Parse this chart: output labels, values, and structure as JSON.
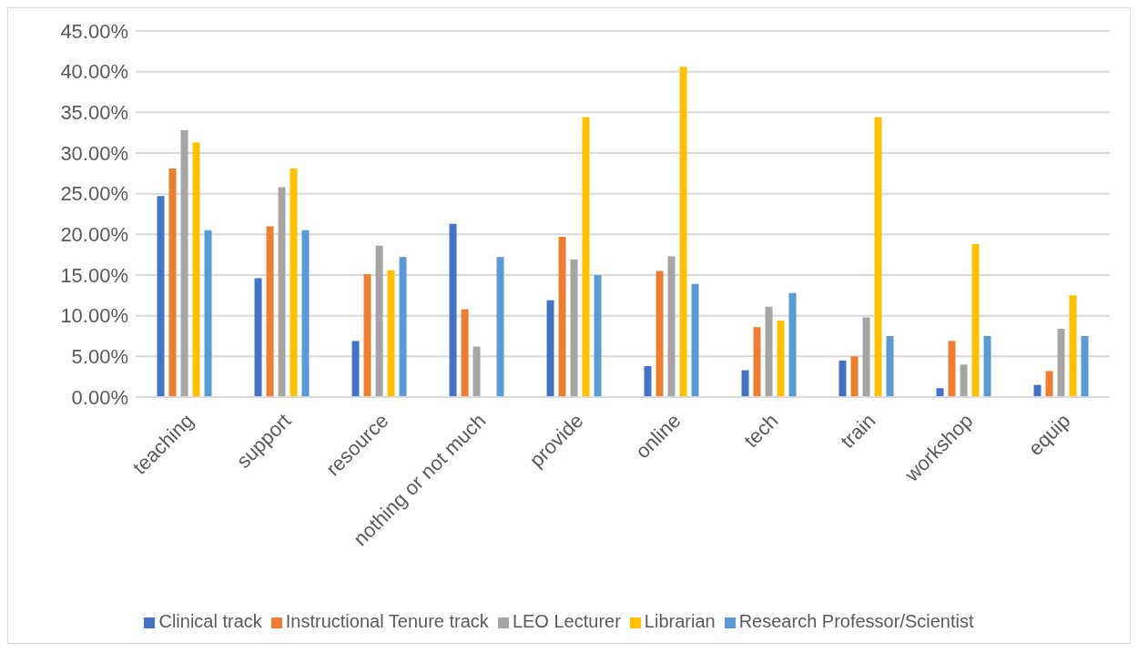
{
  "chart_data": {
    "type": "bar",
    "categories": [
      "teaching",
      "support",
      "resource",
      "nothing or not much",
      "provide",
      "online",
      "tech",
      "train",
      "workshop",
      "equip"
    ],
    "series": [
      {
        "name": "Clinical track",
        "color": "#4472c4",
        "values": [
          24.7,
          14.6,
          6.9,
          21.3,
          11.9,
          3.8,
          3.3,
          4.5,
          1.1,
          1.5
        ]
      },
      {
        "name": "Instructional Tenure track",
        "color": "#ed7d31",
        "values": [
          28.1,
          21.0,
          15.1,
          10.8,
          19.7,
          15.5,
          8.6,
          5.0,
          6.9,
          3.2
        ]
      },
      {
        "name": "LEO Lecturer",
        "color": "#a5a5a5",
        "values": [
          32.8,
          25.8,
          18.6,
          6.2,
          16.9,
          17.3,
          11.1,
          9.8,
          4.0,
          8.4
        ]
      },
      {
        "name": "Librarian",
        "color": "#ffc000",
        "values": [
          31.3,
          28.1,
          15.6,
          null,
          34.4,
          40.6,
          9.4,
          34.4,
          18.8,
          12.5
        ]
      },
      {
        "name": "Research Professor/Scientist",
        "color": "#5b9bd5",
        "values": [
          20.5,
          20.5,
          17.2,
          17.2,
          15.0,
          13.9,
          12.8,
          7.5,
          7.5,
          7.5
        ]
      }
    ],
    "ylim": [
      0,
      45
    ],
    "yticks": [
      {
        "value": 0,
        "label": "0.00%"
      },
      {
        "value": 5,
        "label": "5.00%"
      },
      {
        "value": 10,
        "label": "10.00%"
      },
      {
        "value": 15,
        "label": "15.00%"
      },
      {
        "value": 20,
        "label": "20.00%"
      },
      {
        "value": 25,
        "label": "25.00%"
      },
      {
        "value": 30,
        "label": "30.00%"
      },
      {
        "value": 35,
        "label": "35.00%"
      },
      {
        "value": 40,
        "label": "40.00%"
      },
      {
        "value": 45,
        "label": "45.00%"
      }
    ],
    "grid": "y",
    "legend": "bottom"
  }
}
